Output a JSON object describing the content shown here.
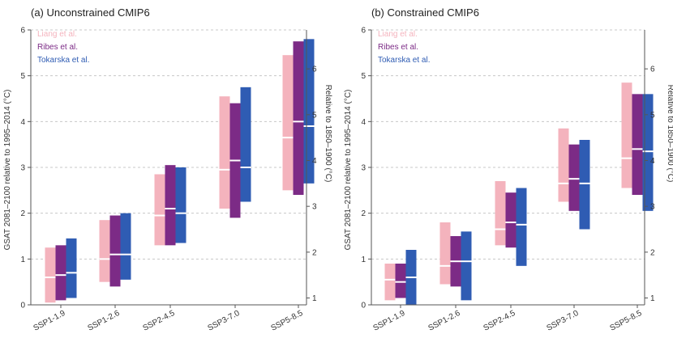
{
  "colors": {
    "liang": "#f4b3bd",
    "ribes": "#7c2b86",
    "tokarska": "#2f5cb3",
    "median": "#ffffff",
    "grid": "#c8c8c8"
  },
  "chart_data": [
    {
      "type": "bar",
      "subtype": "floating-range",
      "title": "(a)  Unconstrained CMIP6",
      "ylabel": "GSAT 2081–2100 relative to 1995–2014 (°C)",
      "ylabel_right": "Relative to 1850–1900 (°C)",
      "ylim": [
        0,
        6
      ],
      "yticks": [
        0,
        1,
        2,
        3,
        4,
        5,
        6
      ],
      "right_ticks": [
        1,
        2,
        3,
        4,
        5,
        6
      ],
      "right_offset": 0.85,
      "grid": "horizontal-dashed",
      "legend_position": "top-left",
      "categories": [
        "SSP1-1.9",
        "SSP1-2.6",
        "SSP2-4.5",
        "SSP3-7.0",
        "SSP5-8.5"
      ],
      "series": [
        {
          "name": "Liang et al.",
          "color_key": "liang",
          "low": [
            0.05,
            0.5,
            1.3,
            2.1,
            2.5
          ],
          "high": [
            1.25,
            1.85,
            2.85,
            4.55,
            5.45
          ],
          "median": [
            0.6,
            1.0,
            1.95,
            2.95,
            3.65
          ]
        },
        {
          "name": "Ribes et al.",
          "color_key": "ribes",
          "low": [
            0.1,
            0.4,
            1.3,
            1.9,
            2.4
          ],
          "high": [
            1.3,
            1.95,
            3.05,
            4.4,
            5.75
          ],
          "median": [
            0.65,
            1.1,
            2.1,
            3.15,
            4.0
          ]
        },
        {
          "name": "Tokarska et al.",
          "color_key": "tokarska",
          "low": [
            0.15,
            0.55,
            1.35,
            2.25,
            2.65
          ],
          "high": [
            1.45,
            2.0,
            3.0,
            4.75,
            5.8
          ],
          "median": [
            0.7,
            1.1,
            2.0,
            3.0,
            3.9
          ]
        }
      ]
    },
    {
      "type": "bar",
      "subtype": "floating-range",
      "title": "(b)  Constrained CMIP6",
      "ylabel": "GSAT 2081–2100 relative to 1995–2014 (°C)",
      "ylabel_right": "Relative to 1850–1900 (°C)",
      "ylim": [
        0,
        6
      ],
      "yticks": [
        0,
        1,
        2,
        3,
        4,
        5,
        6
      ],
      "right_ticks": [
        1,
        2,
        3,
        4,
        5,
        6
      ],
      "right_offset": 0.85,
      "grid": "horizontal-dashed",
      "legend_position": "top-left",
      "categories": [
        "SSP1-1.9",
        "SSP1-2.6",
        "SSP2-4.5",
        "SSP3-7.0",
        "SSP5-8.5"
      ],
      "series": [
        {
          "name": "Liang et al.",
          "color_key": "liang",
          "low": [
            0.1,
            0.45,
            1.3,
            2.25,
            2.55
          ],
          "high": [
            0.9,
            1.8,
            2.7,
            3.85,
            4.85
          ],
          "median": [
            0.55,
            0.85,
            1.65,
            2.65,
            3.2
          ]
        },
        {
          "name": "Ribes et al.",
          "color_key": "ribes",
          "low": [
            0.15,
            0.4,
            1.25,
            2.05,
            2.4
          ],
          "high": [
            0.9,
            1.5,
            2.45,
            3.5,
            4.6
          ],
          "median": [
            0.5,
            0.95,
            1.8,
            2.75,
            3.4
          ]
        },
        {
          "name": "Tokarska et al.",
          "color_key": "tokarska",
          "low": [
            0.0,
            0.1,
            0.85,
            1.65,
            2.05
          ],
          "high": [
            1.2,
            1.6,
            2.55,
            3.6,
            4.6
          ],
          "median": [
            0.6,
            0.95,
            1.75,
            2.65,
            3.35
          ]
        }
      ]
    }
  ]
}
